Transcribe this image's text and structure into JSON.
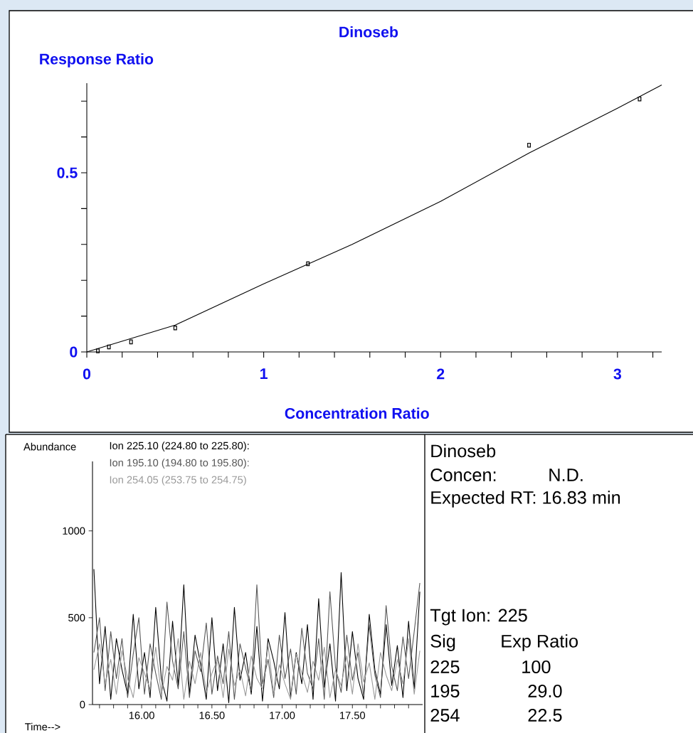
{
  "chart_data": [
    {
      "type": "scatter",
      "title": "Dinoseb",
      "xlabel": "Concentration Ratio",
      "ylabel": "Response Ratio",
      "xlim": [
        0,
        3.25
      ],
      "ylim": [
        0,
        0.75
      ],
      "xticks": [
        0,
        {
          "value": 0.2,
          "label": null
        },
        {
          "value": 0.4,
          "label": null
        },
        {
          "value": 0.6,
          "label": null
        },
        {
          "value": 0.8,
          "label": null
        },
        1,
        {
          "value": 1.2,
          "label": null
        },
        {
          "value": 1.4,
          "label": null
        },
        {
          "value": 1.6,
          "label": null
        },
        {
          "value": 1.8,
          "label": null
        },
        2,
        {
          "value": 2.2,
          "label": null
        },
        {
          "value": 2.4,
          "label": null
        },
        {
          "value": 2.6,
          "label": null
        },
        {
          "value": 2.8,
          "label": null
        },
        3,
        {
          "value": 3.2,
          "label": null
        }
      ],
      "yticks": [
        0,
        {
          "value": 0.1,
          "label": null
        },
        {
          "value": 0.2,
          "label": null
        },
        {
          "value": 0.3,
          "label": null
        },
        {
          "value": 0.4,
          "label": null
        },
        0.5,
        {
          "value": 0.6,
          "label": null
        },
        {
          "value": 0.7,
          "label": null
        }
      ],
      "marker": "square",
      "series": [
        {
          "color": "#000000",
          "x": [
            0.0625,
            0.125,
            0.25,
            0.5,
            1.25,
            2.5,
            3.125
          ],
          "values": [
            0.003,
            0.014,
            0.028,
            0.067,
            0.246,
            0.577,
            0.706
          ]
        },
        {
          "type": "line",
          "marker": "none",
          "color": "#000000",
          "x": [
            0,
            0.5,
            1,
            1.5,
            2,
            2.5,
            3,
            3.25
          ],
          "values": [
            0,
            0.075,
            0.19,
            0.3,
            0.42,
            0.555,
            0.68,
            0.745
          ]
        }
      ]
    },
    {
      "type": "line",
      "xlabel": "Time-->",
      "ylabel": "Abundance",
      "xlim": [
        15.65,
        18.0
      ],
      "ylim": [
        0,
        1400
      ],
      "xticks": [
        {
          "value": 15.7,
          "label": null
        },
        {
          "value": 15.8,
          "label": null
        },
        {
          "value": 15.9,
          "label": null
        },
        {
          "value": 16.0,
          "label": "16.00"
        },
        {
          "value": 16.1,
          "label": null
        },
        {
          "value": 16.2,
          "label": null
        },
        {
          "value": 16.3,
          "label": null
        },
        {
          "value": 16.4,
          "label": null
        },
        {
          "value": 16.5,
          "label": "16.50"
        },
        {
          "value": 16.6,
          "label": null
        },
        {
          "value": 16.7,
          "label": null
        },
        {
          "value": 16.8,
          "label": null
        },
        {
          "value": 16.9,
          "label": null
        },
        {
          "value": 17.0,
          "label": "17.00"
        },
        {
          "value": 17.1,
          "label": null
        },
        {
          "value": 17.2,
          "label": null
        },
        {
          "value": 17.3,
          "label": null
        },
        {
          "value": 17.4,
          "label": null
        },
        {
          "value": 17.5,
          "label": "17.50"
        },
        {
          "value": 17.6,
          "label": null
        },
        {
          "value": 17.7,
          "label": null
        },
        {
          "value": 17.8,
          "label": null
        },
        {
          "value": 17.9,
          "label": null
        }
      ],
      "yticks": [
        0,
        500,
        1000
      ],
      "legend": "top left",
      "x": [
        15.66,
        15.7,
        15.74,
        15.78,
        15.82,
        15.86,
        15.9,
        15.94,
        15.98,
        16.02,
        16.06,
        16.1,
        16.14,
        16.18,
        16.22,
        16.26,
        16.3,
        16.34,
        16.38,
        16.42,
        16.46,
        16.5,
        16.54,
        16.58,
        16.62,
        16.66,
        16.7,
        16.74,
        16.78,
        16.82,
        16.86,
        16.9,
        16.94,
        16.98,
        17.02,
        17.06,
        17.1,
        17.14,
        17.18,
        17.22,
        17.26,
        17.3,
        17.34,
        17.38,
        17.42,
        17.46,
        17.5,
        17.54,
        17.58,
        17.62,
        17.66,
        17.7,
        17.74,
        17.78,
        17.82,
        17.86,
        17.9,
        17.94,
        17.98
      ],
      "series": [
        {
          "name": "Ion 225.10 (224.80 to 225.80):",
          "color": "#000000",
          "values": [
            780,
            120,
            450,
            30,
            380,
            200,
            60,
            520,
            90,
            300,
            40,
            560,
            150,
            20,
            480,
            110,
            690,
            60,
            400,
            230,
            30,
            500,
            80,
            350,
            10,
            560,
            140,
            300,
            60,
            450,
            20,
            380,
            250,
            90,
            530,
            40,
            300,
            120,
            460,
            30,
            610,
            100,
            350,
            20,
            760,
            80,
            420,
            150,
            30,
            520,
            200,
            60,
            460,
            110,
            340,
            40,
            480,
            90,
            650
          ]
        },
        {
          "name": "Ion 195.10 (194.80 to 195.80):",
          "color": "#555555",
          "values": [
            300,
            500,
            80,
            420,
            150,
            380,
            40,
            290,
            500,
            60,
            350,
            180,
            30,
            590,
            250,
            90,
            420,
            40,
            310,
            190,
            470,
            60,
            280,
            120,
            420,
            30,
            350,
            210,
            80,
            690,
            120,
            260,
            40,
            400,
            150,
            320,
            60,
            440,
            180,
            90,
            380,
            30,
            650,
            210,
            70,
            400,
            140,
            300,
            50,
            460,
            170,
            40,
            570,
            220,
            80,
            390,
            150,
            420,
            700
          ]
        },
        {
          "name": "Ion 254.05 (253.75 to 254.75)",
          "color": "#999999",
          "values": [
            200,
            350,
            120,
            260,
            60,
            310,
            150,
            40,
            270,
            180,
            90,
            330,
            60,
            220,
            140,
            380,
            30,
            250,
            120,
            300,
            70,
            180,
            260,
            40,
            320,
            110,
            200,
            50,
            280,
            150,
            90,
            340,
            60,
            230,
            120,
            30,
            290,
            180,
            70,
            250,
            140,
            330,
            40,
            200,
            110,
            280,
            60,
            350,
            130,
            240,
            30,
            300,
            170,
            80,
            260,
            120,
            380,
            60,
            310
          ]
        }
      ]
    },
    {
      "type": "other",
      "annotations": [
        "Dinoseb",
        "Concen:",
        "N.D.",
        "Expected RT: 16.83 min",
        "Tgt Ion: 225",
        "Sig",
        "Exp Ratio",
        "225",
        "100",
        "195",
        "29.0",
        "254",
        "22.5"
      ]
    }
  ]
}
